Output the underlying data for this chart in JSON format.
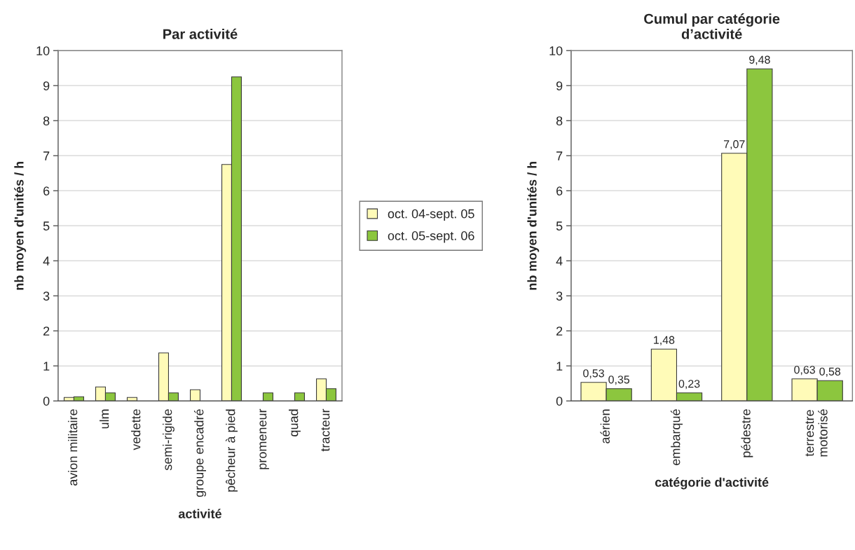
{
  "chart_data": [
    {
      "type": "bar",
      "title": "Par activité",
      "xlabel": "activité",
      "ylabel": "nb moyen d'unités / h",
      "categories": [
        "avion militaire",
        "ulm",
        "vedette",
        "semi-rigide",
        "groupe encadré",
        "pêcheur à pied",
        "promeneur",
        "quad",
        "tracteur"
      ],
      "series": [
        {
          "name": "oct. 04-sept. 05",
          "color": "#fffbb8",
          "values": [
            0.1,
            0.4,
            0.1,
            1.37,
            0.32,
            6.75,
            null,
            null,
            0.63
          ]
        },
        {
          "name": "oct. 05-sept. 06",
          "color": "#8cc63e",
          "values": [
            0.12,
            0.23,
            null,
            0.23,
            null,
            9.25,
            0.23,
            0.23,
            0.35
          ]
        }
      ],
      "ylim": [
        0,
        10
      ],
      "yticks": [
        0,
        1,
        2,
        3,
        4,
        5,
        6,
        7,
        8,
        9,
        10
      ],
      "grid": "y",
      "legend": "right"
    },
    {
      "type": "bar",
      "title": "Cumul par catégorie\nd’activité",
      "xlabel": "catégorie d'activité",
      "ylabel": "nb moyen d'unités / h",
      "categories": [
        "aérien",
        "embarqué",
        "pédestre",
        "terrestre\nmotorisé"
      ],
      "series": [
        {
          "color": "#fffbb8",
          "values": [
            0.53,
            1.48,
            7.07,
            0.63
          ],
          "value_labels": [
            "0,53",
            "1,48",
            "7,07",
            "0,63"
          ]
        },
        {
          "color": "#8cc63e",
          "values": [
            0.35,
            0.23,
            9.48,
            0.58
          ],
          "value_labels": [
            "0,35",
            "0,23",
            "9,48",
            "0,58"
          ]
        }
      ],
      "ylim": [
        0,
        10
      ],
      "yticks": [
        0,
        1,
        2,
        3,
        4,
        5,
        6,
        7,
        8,
        9,
        10
      ],
      "grid": "y"
    }
  ]
}
